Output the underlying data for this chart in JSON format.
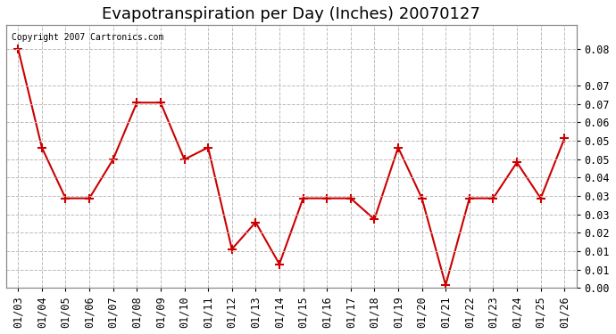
{
  "title": "Evapotranspiration per Day (Inches) 20070127",
  "copyright_text": "Copyright 2007 Cartronics.com",
  "dates": [
    "01/03",
    "01/04",
    "01/05",
    "01/06",
    "01/07",
    "01/08",
    "01/09",
    "01/10",
    "01/11",
    "01/12",
    "01/13",
    "01/14",
    "01/15",
    "01/16",
    "01/17",
    "01/18",
    "01/19",
    "01/20",
    "01/21",
    "01/22",
    "01/23",
    "01/24",
    "01/25",
    "01/26"
  ],
  "values": [
    0.08,
    0.047,
    0.03,
    0.03,
    0.043,
    0.062,
    0.062,
    0.043,
    0.047,
    0.013,
    0.022,
    0.008,
    0.03,
    0.03,
    0.03,
    0.023,
    0.047,
    0.03,
    0.001,
    0.03,
    0.03,
    0.042,
    0.03,
    0.05
  ],
  "line_color": "#cc0000",
  "marker": "+",
  "marker_size": 7,
  "marker_linewidth": 1.5,
  "line_width": 1.5,
  "ylim": [
    0.0,
    0.088
  ],
  "ytick_positions": [
    0.0,
    0.00615,
    0.01231,
    0.01846,
    0.02462,
    0.03077,
    0.03692,
    0.04308,
    0.04923,
    0.05538,
    0.06154,
    0.06769,
    0.08
  ],
  "ytick_labels": [
    "0.00",
    "0.01",
    "0.01",
    "0.02",
    "0.03",
    "0.03",
    "0.04",
    "0.05",
    "0.05",
    "0.06",
    "0.07",
    "0.07",
    "0.08"
  ],
  "background_color": "#ffffff",
  "grid_color": "#bbbbbb",
  "title_fontsize": 13,
  "label_fontsize": 8.5
}
